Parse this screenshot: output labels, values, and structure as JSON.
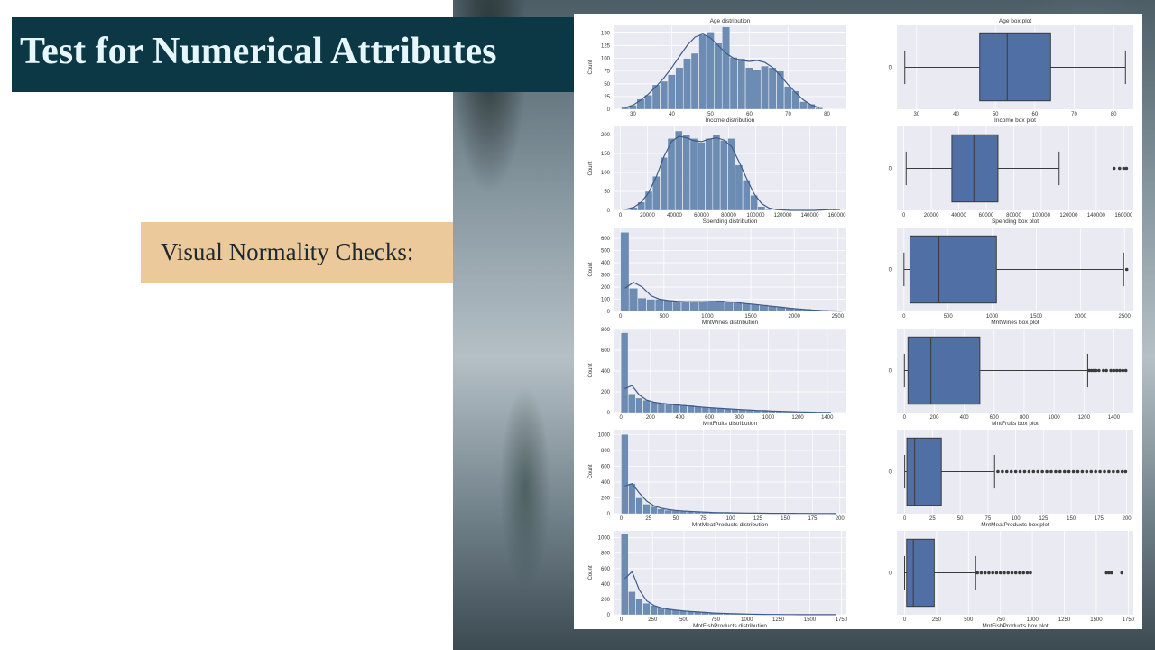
{
  "slide": {
    "title": "Test for Numerical Attributes",
    "subtitle": "Visual Normality Checks:"
  },
  "colors": {
    "title_bg": "#0c3744",
    "title_text": "#e6f6fb",
    "subtitle_bg": "#ecc99a",
    "plot_bg": "#eaeaf2",
    "bar_fill": "#6d8cb3",
    "box_fill": "#4f6fa5",
    "line": "#3e5a8a"
  },
  "chart_data": [
    {
      "type": "bar",
      "title": "Age distribution",
      "xlabel": "Income distribution",
      "ylabel": "Count",
      "xlim": [
        25,
        85
      ],
      "ylim": [
        0,
        165
      ],
      "xticks": [
        30,
        40,
        50,
        60,
        70,
        80
      ],
      "yticks": [
        0,
        25,
        50,
        75,
        100,
        125,
        150
      ],
      "bin_start": 27,
      "bin_width": 2,
      "counts": [
        5,
        8,
        20,
        28,
        48,
        55,
        68,
        82,
        100,
        110,
        146,
        150,
        130,
        162,
        102,
        100,
        82,
        78,
        85,
        82,
        75,
        45,
        36,
        15,
        10,
        3
      ],
      "kde": [
        3,
        8,
        18,
        30,
        45,
        62,
        82,
        104,
        126,
        142,
        148,
        140,
        125,
        110,
        100,
        96,
        94,
        96,
        92,
        82,
        66,
        48,
        32,
        18,
        8,
        3
      ]
    },
    {
      "type": "box",
      "title": "Age box plot",
      "xlabel": "Income box plot",
      "category": "0",
      "xlim": [
        25,
        85
      ],
      "xticks": [
        30,
        40,
        50,
        60,
        70,
        80
      ],
      "whisker_low": 27,
      "q1": 46,
      "median": 53,
      "q3": 64,
      "whisker_high": 83,
      "outliers": []
    },
    {
      "type": "bar",
      "title": "",
      "xlabel": "Spending distribution",
      "ylabel": "Count",
      "xlim": [
        -5000,
        167000
      ],
      "ylim": [
        0,
        222
      ],
      "xticks": [
        0,
        20000,
        40000,
        60000,
        80000,
        100000,
        120000,
        140000,
        160000
      ],
      "yticks": [
        0,
        50,
        100,
        150,
        200
      ],
      "bin_start": 1700,
      "bin_width": 5550,
      "counts": [
        2,
        8,
        22,
        50,
        90,
        140,
        190,
        210,
        200,
        190,
        180,
        190,
        200,
        185,
        190,
        120,
        80,
        40,
        10,
        2,
        1,
        1,
        0,
        0,
        0,
        0,
        0,
        0,
        3
      ],
      "kde": [
        3,
        8,
        22,
        48,
        90,
        142,
        182,
        196,
        192,
        184,
        182,
        188,
        192,
        186,
        168,
        128,
        84,
        44,
        18,
        6,
        2,
        1,
        0,
        0,
        0,
        0,
        1,
        2,
        2
      ]
    },
    {
      "type": "box",
      "title": "",
      "xlabel": "Spending box plot",
      "category": "0",
      "xlim": [
        -5000,
        167000
      ],
      "xticks": [
        0,
        20000,
        40000,
        60000,
        80000,
        100000,
        120000,
        140000,
        160000
      ],
      "whisker_low": 1730,
      "q1": 35000,
      "median": 51000,
      "q3": 68500,
      "whisker_high": 113000,
      "outliers": [
        153000,
        157000,
        160000,
        162000
      ]
    },
    {
      "type": "bar",
      "title": "",
      "xlabel": "MntWines distribution",
      "ylabel": "Count",
      "xlim": [
        -80,
        2600
      ],
      "ylim": [
        0,
        690
      ],
      "xticks": [
        0,
        500,
        1000,
        1500,
        2000,
        2500
      ],
      "yticks": [
        0,
        100,
        200,
        300,
        400,
        500,
        600
      ],
      "bin_start": 0,
      "bin_width": 100,
      "counts": [
        650,
        190,
        110,
        100,
        100,
        90,
        85,
        80,
        80,
        80,
        85,
        90,
        80,
        70,
        65,
        60,
        55,
        45,
        40,
        30,
        25,
        20,
        15,
        12,
        10,
        8
      ],
      "kde": [
        190,
        240,
        200,
        130,
        100,
        90,
        84,
        80,
        80,
        80,
        82,
        82,
        78,
        72,
        64,
        58,
        50,
        42,
        34,
        26,
        20,
        14,
        10,
        6,
        4,
        2
      ]
    },
    {
      "type": "box",
      "title": "",
      "xlabel": "MntWines box plot",
      "category": "0",
      "xlim": [
        -80,
        2600
      ],
      "xticks": [
        0,
        500,
        1000,
        1500,
        2000,
        2500
      ],
      "whisker_low": 0,
      "q1": 68,
      "median": 396,
      "q3": 1048,
      "whisker_high": 2490,
      "outliers": [
        2525
      ]
    },
    {
      "type": "bar",
      "title": "",
      "xlabel": "MntFruits distribution",
      "ylabel": "Count",
      "xlim": [
        -50,
        1530
      ],
      "ylim": [
        0,
        810
      ],
      "xticks": [
        0,
        200,
        400,
        600,
        800,
        1000,
        1200,
        1400
      ],
      "yticks": [
        0,
        200,
        400,
        600,
        800
      ],
      "bin_start": 0,
      "bin_width": 50,
      "counts": [
        770,
        180,
        140,
        120,
        100,
        95,
        90,
        80,
        75,
        70,
        60,
        55,
        50,
        45,
        40,
        35,
        30,
        28,
        25,
        20,
        18,
        15,
        12,
        10,
        8,
        6,
        4,
        3,
        2
      ],
      "kde": [
        230,
        260,
        170,
        120,
        100,
        90,
        82,
        74,
        68,
        62,
        56,
        50,
        44,
        40,
        36,
        32,
        28,
        24,
        20,
        18,
        15,
        12,
        10,
        8,
        6,
        4,
        3,
        2,
        1
      ]
    },
    {
      "type": "box",
      "title": "",
      "xlabel": "MntFruits box plot",
      "category": "0",
      "xlim": [
        -50,
        1530
      ],
      "xticks": [
        0,
        200,
        400,
        600,
        800,
        1000,
        1200,
        1400
      ],
      "whisker_low": 0,
      "q1": 24,
      "median": 177,
      "q3": 504,
      "whisker_high": 1225,
      "outliers": [
        1235,
        1250,
        1265,
        1280,
        1300,
        1330,
        1350,
        1380,
        1400,
        1420,
        1440,
        1460,
        1480
      ]
    },
    {
      "type": "bar",
      "title": "",
      "xlabel": "MntMeatProducts distribution",
      "ylabel": "Count",
      "xlim": [
        -7,
        206
      ],
      "ylim": [
        0,
        1060
      ],
      "xticks": [
        0,
        25,
        50,
        75,
        100,
        125,
        150,
        175,
        200
      ],
      "yticks": [
        0,
        200,
        400,
        600,
        800,
        1000
      ],
      "bin_start": 0,
      "bin_width": 6.66,
      "counts": [
        1000,
        380,
        200,
        120,
        90,
        60,
        45,
        40,
        30,
        25,
        20,
        18,
        15,
        12,
        10,
        10,
        8,
        8,
        6,
        6,
        5,
        5,
        4,
        4,
        3,
        3,
        3,
        2,
        2,
        2
      ],
      "kde": [
        350,
        380,
        260,
        160,
        100,
        70,
        52,
        42,
        34,
        28,
        24,
        20,
        16,
        14,
        12,
        10,
        9,
        8,
        7,
        6,
        5,
        5,
        4,
        4,
        3,
        3,
        2,
        2,
        2,
        1
      ]
    },
    {
      "type": "box",
      "title": "",
      "xlabel": "MntMeatProducts box plot",
      "category": "0",
      "xlim": [
        -7,
        206
      ],
      "xticks": [
        0,
        25,
        50,
        75,
        100,
        125,
        150,
        175,
        200
      ],
      "whisker_low": 0,
      "q1": 2,
      "median": 9,
      "q3": 33,
      "whisker_high": 81,
      "outliers": [
        84,
        88,
        92,
        96,
        100,
        104,
        108,
        112,
        116,
        120,
        124,
        128,
        132,
        136,
        140,
        144,
        148,
        152,
        156,
        160,
        164,
        168,
        172,
        176,
        180,
        184,
        188,
        192,
        196,
        199
      ]
    },
    {
      "type": "bar",
      "title": "",
      "xlabel": "MntFishProducts distribution",
      "ylabel": "Count",
      "xlim": [
        -60,
        1790
      ],
      "ylim": [
        0,
        1090
      ],
      "xticks": [
        0,
        250,
        500,
        750,
        1000,
        1250,
        1500,
        1750
      ],
      "yticks": [
        0,
        200,
        400,
        600,
        800,
        1000
      ],
      "bin_start": 0,
      "bin_width": 58,
      "counts": [
        1050,
        300,
        210,
        150,
        120,
        90,
        75,
        65,
        55,
        45,
        40,
        35,
        28,
        22,
        18,
        15,
        12,
        10,
        8,
        6,
        4,
        3,
        2,
        2,
        1,
        1,
        1,
        1,
        2,
        1
      ],
      "kde": [
        470,
        560,
        320,
        180,
        120,
        90,
        72,
        60,
        50,
        42,
        36,
        30,
        24,
        20,
        16,
        13,
        10,
        8,
        6,
        5,
        4,
        3,
        2,
        2,
        1,
        1,
        1,
        1,
        1,
        1
      ]
    },
    {
      "type": "box",
      "title": "",
      "xlabel": "MntFishProducts box plot",
      "category": "0",
      "xlim": [
        -60,
        1790
      ],
      "xticks": [
        0,
        250,
        500,
        750,
        1000,
        1250,
        1500,
        1750
      ],
      "whisker_low": 0,
      "q1": 16,
      "median": 68,
      "q3": 232,
      "whisker_high": 556,
      "outliers": [
        570,
        600,
        630,
        660,
        690,
        720,
        750,
        780,
        810,
        840,
        870,
        900,
        930,
        960,
        985,
        1580,
        1600,
        1620,
        1700
      ]
    }
  ]
}
